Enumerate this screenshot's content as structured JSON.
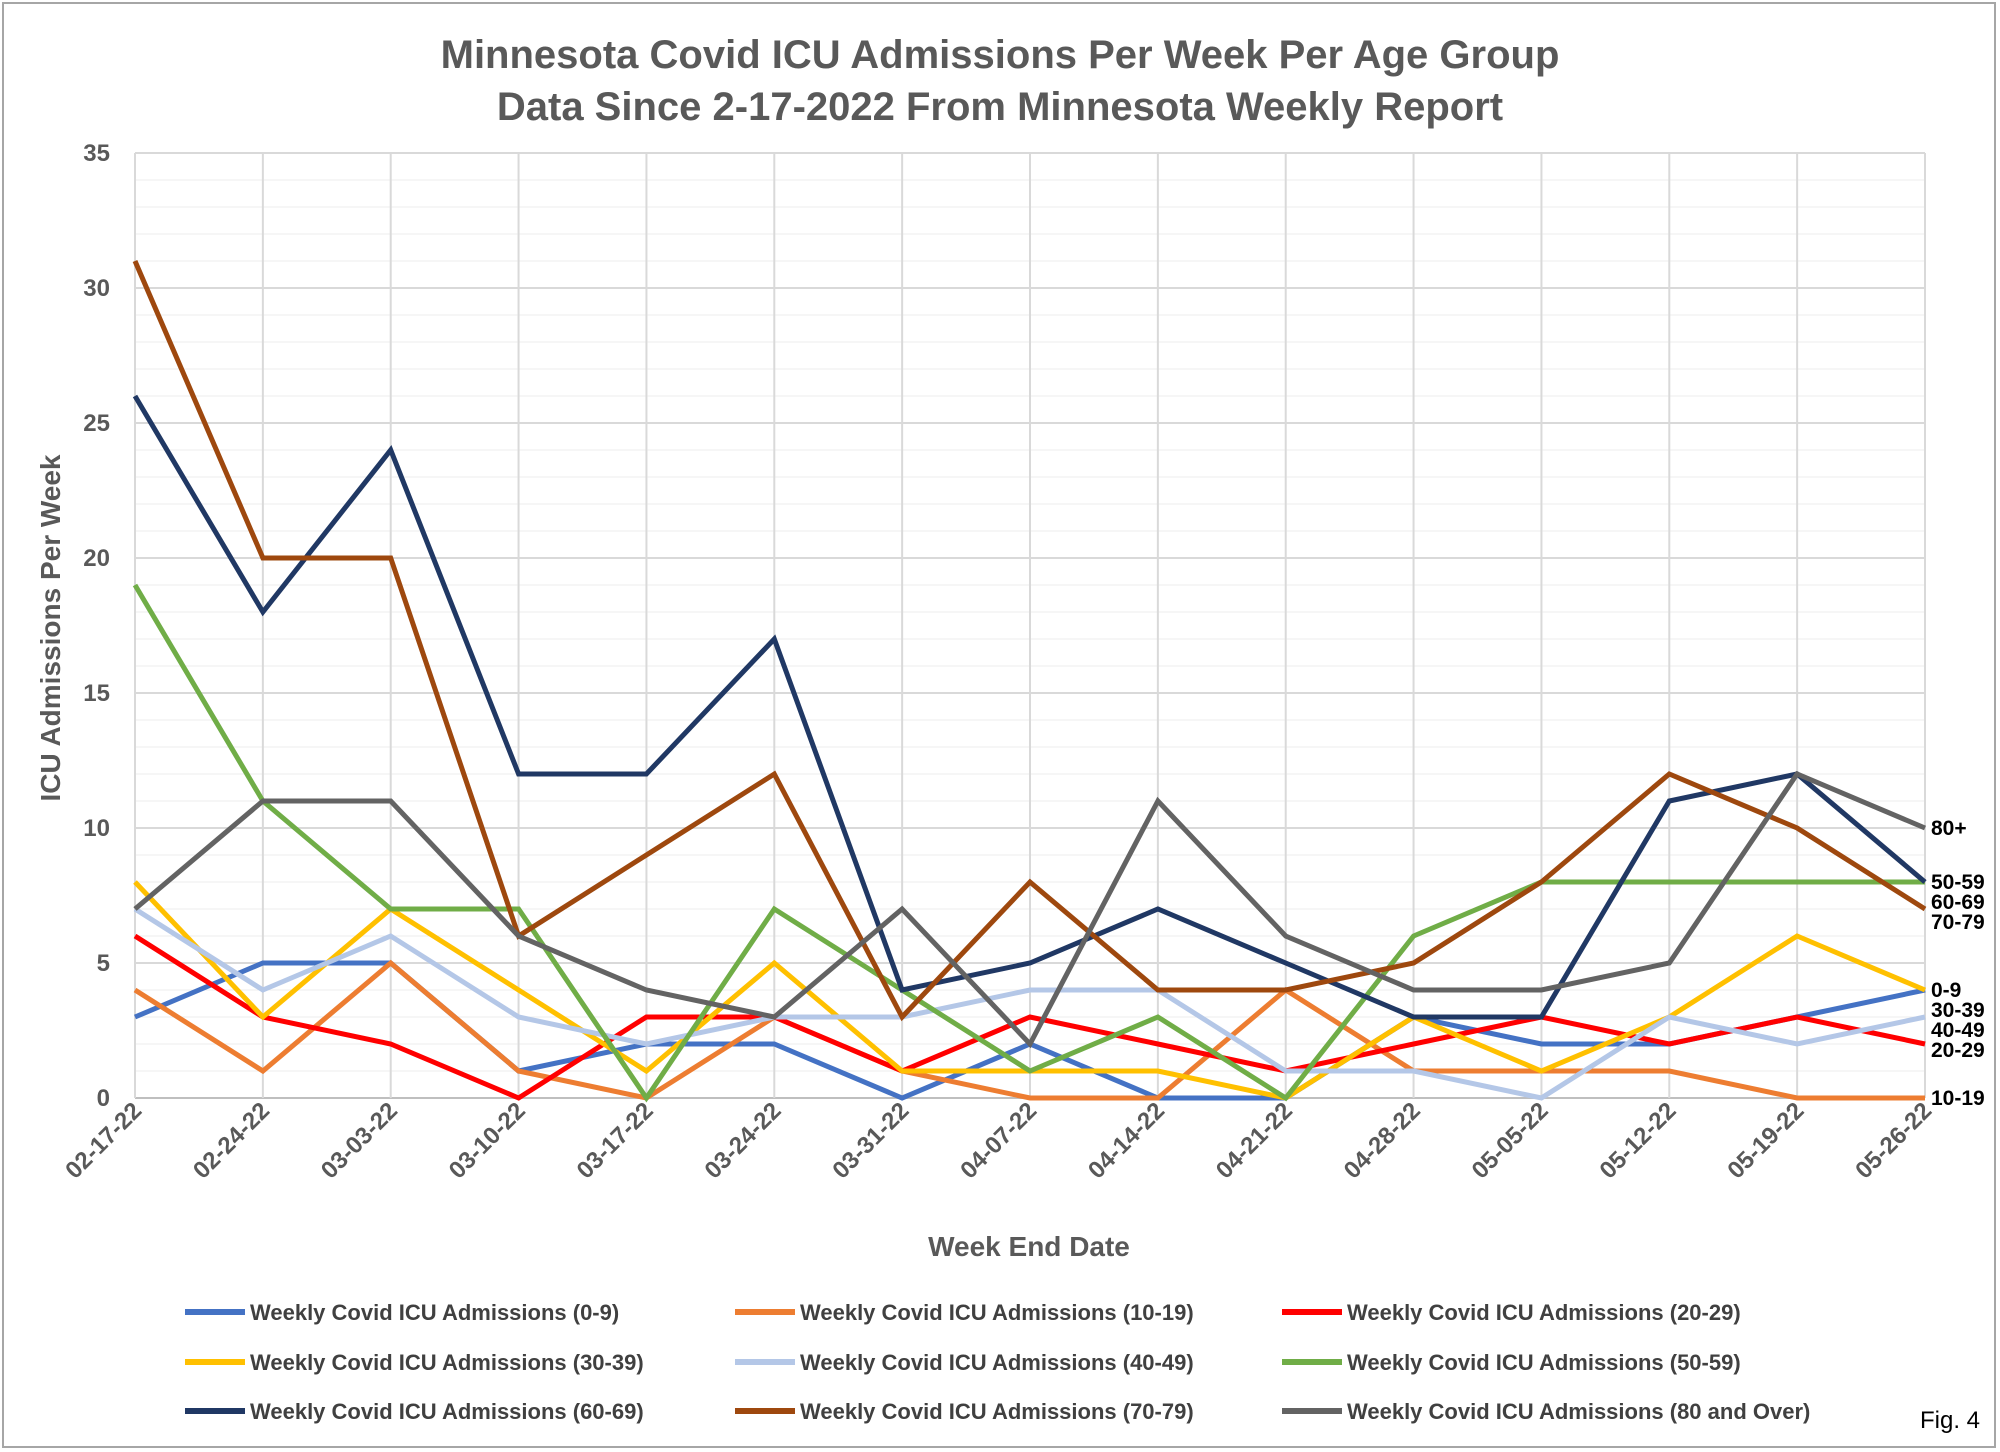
{
  "chart_data": {
    "type": "line",
    "title": [
      "Minnesota Covid ICU Admissions Per Week Per Age Group",
      "Data Since 2-17-2022 From Minnesota Weekly Report"
    ],
    "xlabel": "Week End Date",
    "ylabel": "ICU Admissions Per Week",
    "ylim": [
      0,
      35
    ],
    "yticks": [
      0,
      5,
      10,
      15,
      20,
      25,
      30,
      35
    ],
    "grid": true,
    "legend_position": "bottom",
    "categories": [
      "02-17-22",
      "02-24-22",
      "03-03-22",
      "03-10-22",
      "03-17-22",
      "03-24-22",
      "03-31-22",
      "04-07-22",
      "04-14-22",
      "04-21-22",
      "04-28-22",
      "05-05-22",
      "05-12-22",
      "05-19-22",
      "05-26-22"
    ],
    "series": [
      {
        "name": "Weekly Covid ICU Admissions (0-9)",
        "color": "#4472c4",
        "end_label": "0-9",
        "values": [
          3,
          5,
          5,
          1,
          2,
          2,
          0,
          2,
          0,
          0,
          3,
          2,
          2,
          3,
          4
        ]
      },
      {
        "name": "Weekly Covid ICU Admissions (10-19)",
        "color": "#ed7d31",
        "end_label": "10-19",
        "values": [
          4,
          1,
          5,
          1,
          0,
          3,
          1,
          0,
          0,
          4,
          1,
          1,
          1,
          0,
          0
        ]
      },
      {
        "name": "Weekly Covid ICU Admissions (20-29)",
        "color": "#ff0000",
        "end_label": "20-29",
        "values": [
          6,
          3,
          2,
          0,
          3,
          3,
          1,
          3,
          2,
          1,
          2,
          3,
          2,
          3,
          2
        ]
      },
      {
        "name": "Weekly Covid ICU Admissions (30-39)",
        "color": "#ffc000",
        "end_label": "30-39",
        "values": [
          8,
          3,
          7,
          4,
          1,
          5,
          1,
          1,
          1,
          0,
          3,
          1,
          3,
          6,
          4
        ]
      },
      {
        "name": "Weekly Covid ICU Admissions (40-49)",
        "color": "#b4c7e7",
        "end_label": "40-49",
        "values": [
          7,
          4,
          6,
          3,
          2,
          3,
          3,
          4,
          4,
          1,
          1,
          0,
          3,
          2,
          3
        ]
      },
      {
        "name": "Weekly Covid ICU Admissions (50-59)",
        "color": "#70ad47",
        "end_label": "50-59",
        "values": [
          19,
          11,
          7,
          7,
          0,
          7,
          4,
          1,
          3,
          0,
          6,
          8,
          8,
          8,
          8
        ]
      },
      {
        "name": "Weekly Covid ICU Admissions (60-69)",
        "color": "#203864",
        "end_label": "60-69",
        "values": [
          26,
          18,
          24,
          12,
          12,
          17,
          4,
          5,
          7,
          5,
          3,
          3,
          11,
          12,
          8
        ]
      },
      {
        "name": "Weekly Covid ICU Admissions (70-79)",
        "color": "#9e480e",
        "end_label": "70-79",
        "values": [
          31,
          20,
          20,
          6,
          9,
          12,
          3,
          8,
          4,
          4,
          5,
          8,
          12,
          10,
          7
        ]
      },
      {
        "name": "Weekly Covid ICU Admissions (80 and Over)",
        "color": "#636363",
        "end_label": "80+",
        "values": [
          7,
          11,
          11,
          6,
          4,
          3,
          7,
          2,
          11,
          6,
          4,
          4,
          5,
          12,
          10
        ]
      }
    ]
  },
  "figure_label": "Fig. 4"
}
